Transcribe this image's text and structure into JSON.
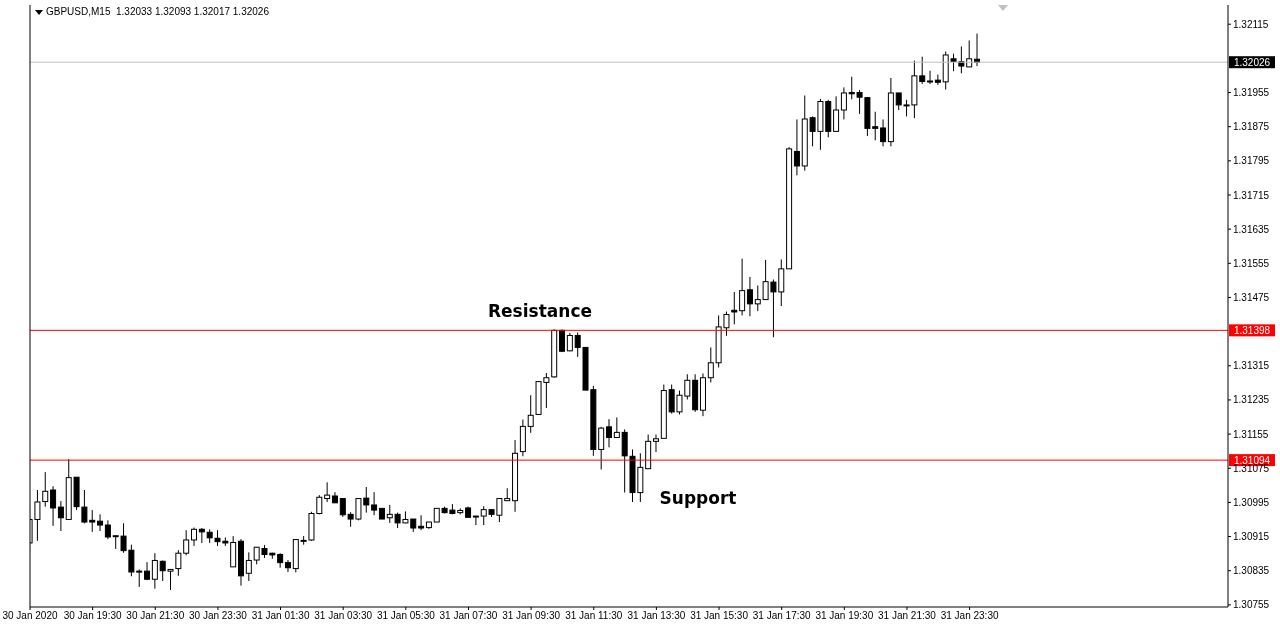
{
  "chart_data": {
    "type": "candlestick",
    "title": "GBPUSD,M15  1.32033 1.32093 1.32017 1.32026",
    "color": "#000000",
    "x": [
      "2020-01-30T17:30",
      "2020-01-30T17:45",
      "2020-01-30T18:00",
      "2020-01-30T18:15",
      "2020-01-30T18:30",
      "2020-01-30T18:45",
      "2020-01-30T19:00",
      "2020-01-30T19:15",
      "2020-01-30T19:30",
      "2020-01-30T19:45",
      "2020-01-30T20:00",
      "2020-01-30T20:15",
      "2020-01-30T20:30",
      "2020-01-30T20:45",
      "2020-01-30T21:00",
      "2020-01-30T21:15",
      "2020-01-30T21:30",
      "2020-01-30T21:45",
      "2020-01-30T22:00",
      "2020-01-30T22:15",
      "2020-01-30T22:30",
      "2020-01-30T22:45",
      "2020-01-30T23:00",
      "2020-01-30T23:15",
      "2020-01-30T23:30",
      "2020-01-30T23:45",
      "2020-01-31T00:00",
      "2020-01-31T00:15",
      "2020-01-31T00:30",
      "2020-01-31T00:45",
      "2020-01-31T01:00",
      "2020-01-31T01:15",
      "2020-01-31T01:30",
      "2020-01-31T01:45",
      "2020-01-31T02:00",
      "2020-01-31T02:15",
      "2020-01-31T02:30",
      "2020-01-31T02:45",
      "2020-01-31T03:00",
      "2020-01-31T03:15",
      "2020-01-31T03:30",
      "2020-01-31T03:45",
      "2020-01-31T04:00",
      "2020-01-31T04:15",
      "2020-01-31T04:30",
      "2020-01-31T04:45",
      "2020-01-31T05:00",
      "2020-01-31T05:15",
      "2020-01-31T05:30",
      "2020-01-31T05:45",
      "2020-01-31T06:00",
      "2020-01-31T06:15",
      "2020-01-31T06:30",
      "2020-01-31T06:45",
      "2020-01-31T07:00",
      "2020-01-31T07:15",
      "2020-01-31T07:30",
      "2020-01-31T07:45",
      "2020-01-31T08:00",
      "2020-01-31T08:15",
      "2020-01-31T08:30",
      "2020-01-31T08:45",
      "2020-01-31T09:00",
      "2020-01-31T09:15",
      "2020-01-31T09:30",
      "2020-01-31T09:45",
      "2020-01-31T10:00",
      "2020-01-31T10:15",
      "2020-01-31T10:30",
      "2020-01-31T10:45",
      "2020-01-31T11:00",
      "2020-01-31T11:15",
      "2020-01-31T11:30",
      "2020-01-31T11:45",
      "2020-01-31T12:00",
      "2020-01-31T12:15",
      "2020-01-31T12:30",
      "2020-01-31T12:45",
      "2020-01-31T13:00",
      "2020-01-31T13:15",
      "2020-01-31T13:30",
      "2020-01-31T13:45",
      "2020-01-31T14:00",
      "2020-01-31T14:15",
      "2020-01-31T14:30",
      "2020-01-31T14:45",
      "2020-01-31T15:00",
      "2020-01-31T15:15",
      "2020-01-31T15:30",
      "2020-01-31T15:45",
      "2020-01-31T16:00",
      "2020-01-31T16:15",
      "2020-01-31T16:30",
      "2020-01-31T16:45",
      "2020-01-31T17:00",
      "2020-01-31T17:15",
      "2020-01-31T17:30",
      "2020-01-31T17:45",
      "2020-01-31T18:00",
      "2020-01-31T18:15",
      "2020-01-31T18:30",
      "2020-01-31T18:45",
      "2020-01-31T19:00",
      "2020-01-31T19:15",
      "2020-01-31T19:30",
      "2020-01-31T19:45",
      "2020-01-31T20:00",
      "2020-01-31T20:15",
      "2020-01-31T20:30",
      "2020-01-31T20:45",
      "2020-01-31T21:00",
      "2020-01-31T21:15",
      "2020-01-31T21:30",
      "2020-01-31T21:45",
      "2020-01-31T22:00",
      "2020-01-31T22:15",
      "2020-01-31T22:30",
      "2020-01-31T22:45",
      "2020-01-31T23:00",
      "2020-01-31T23:15",
      "2020-01-31T23:30",
      "2020-01-31T23:45"
    ],
    "ohlc": [
      [
        1.309,
        1.30985,
        1.30877,
        1.30955
      ],
      [
        1.30955,
        1.31024,
        1.30905,
        1.30996
      ],
      [
        1.30997,
        1.31066,
        1.30985,
        1.31021
      ],
      [
        1.31024,
        1.31033,
        1.3094,
        1.30982
      ],
      [
        1.30984,
        1.30998,
        1.30928,
        1.30959
      ],
      [
        1.30955,
        1.31096,
        1.30955,
        1.31053
      ],
      [
        1.31054,
        1.31054,
        1.30977,
        1.30985
      ],
      [
        1.30984,
        1.31024,
        1.30946,
        1.30949
      ],
      [
        1.30953,
        1.30977,
        1.30926,
        1.30949
      ],
      [
        1.30951,
        1.30967,
        1.30928,
        1.30942
      ],
      [
        1.30942,
        1.30953,
        1.30909,
        1.30914
      ],
      [
        1.30917,
        1.30918,
        1.30886,
        1.30917
      ],
      [
        1.30916,
        1.30946,
        1.30877,
        1.30882
      ],
      [
        1.30883,
        1.30896,
        1.30822,
        1.30832
      ],
      [
        1.30834,
        1.30838,
        1.30797,
        1.30834
      ],
      [
        1.30834,
        1.30855,
        1.30813,
        1.30815
      ],
      [
        1.30815,
        1.30876,
        1.30793,
        1.30859
      ],
      [
        1.30857,
        1.30859,
        1.30811,
        1.30835
      ],
      [
        1.30834,
        1.30838,
        1.3079,
        1.30838
      ],
      [
        1.3084,
        1.30883,
        1.30823,
        1.30876
      ],
      [
        1.30876,
        1.3093,
        1.30871,
        1.30907
      ],
      [
        1.30907,
        1.30936,
        1.30893,
        1.30932
      ],
      [
        1.30932,
        1.30935,
        1.309,
        1.30926
      ],
      [
        1.30925,
        1.30932,
        1.309,
        1.30912
      ],
      [
        1.30911,
        1.3093,
        1.30893,
        1.30903
      ],
      [
        1.30904,
        1.30913,
        1.30893,
        1.309
      ],
      [
        1.30844,
        1.30916,
        1.30844,
        1.30901
      ],
      [
        1.30904,
        1.30909,
        1.308,
        1.30823
      ],
      [
        1.30829,
        1.30878,
        1.30811,
        1.30859
      ],
      [
        1.3086,
        1.3089,
        1.3085,
        1.3089
      ],
      [
        1.30887,
        1.30895,
        1.30865,
        1.30873
      ],
      [
        1.30876,
        1.30877,
        1.30863,
        1.30872
      ],
      [
        1.30873,
        1.30876,
        1.30842,
        1.30854
      ],
      [
        1.30854,
        1.3086,
        1.30832,
        1.30842
      ],
      [
        1.3084,
        1.30908,
        1.30831,
        1.30908
      ],
      [
        1.30906,
        1.30916,
        1.30896,
        1.30906
      ],
      [
        1.30907,
        1.30973,
        1.30905,
        1.30969
      ],
      [
        1.30969,
        1.31012,
        1.30967,
        1.31007
      ],
      [
        1.31004,
        1.31042,
        1.30996,
        1.31012
      ],
      [
        1.3101,
        1.31019,
        1.30994,
        1.30994
      ],
      [
        1.31004,
        1.31004,
        1.30961,
        1.30966
      ],
      [
        1.30967,
        1.30972,
        1.30938,
        1.30956
      ],
      [
        1.30956,
        1.31004,
        1.30953,
        1.31004
      ],
      [
        1.31005,
        1.31031,
        1.30971,
        1.30989
      ],
      [
        1.30989,
        1.31019,
        1.30965,
        1.30977
      ],
      [
        1.30981,
        1.30981,
        1.30956,
        1.30956
      ],
      [
        1.30959,
        1.30989,
        1.30947,
        1.30967
      ],
      [
        1.30967,
        1.30971,
        1.30935,
        1.30947
      ],
      [
        1.30947,
        1.30974,
        1.30946,
        1.30955
      ],
      [
        1.30956,
        1.30956,
        1.30926,
        1.30935
      ],
      [
        1.30939,
        1.30965,
        1.3093,
        1.30935
      ],
      [
        1.30936,
        1.30949,
        1.30933,
        1.30949
      ],
      [
        1.30949,
        1.30981,
        1.30949,
        1.30981
      ],
      [
        1.30981,
        1.30985,
        1.30969,
        1.30971
      ],
      [
        1.30977,
        1.30991,
        1.30967,
        1.30969
      ],
      [
        1.30971,
        1.30981,
        1.30967,
        1.30976
      ],
      [
        1.30982,
        1.30985,
        1.3096,
        1.3096
      ],
      [
        1.30963,
        1.30963,
        1.30942,
        1.30963
      ],
      [
        1.30963,
        1.30986,
        1.30942,
        1.30978
      ],
      [
        1.30978,
        1.30978,
        1.30961,
        1.30967
      ],
      [
        1.30965,
        1.31004,
        1.30949,
        1.31004
      ],
      [
        1.30999,
        1.31028,
        1.30999,
        1.31004
      ],
      [
        1.30999,
        1.31141,
        1.30973,
        1.3111
      ],
      [
        1.31114,
        1.31189,
        1.31103,
        1.31173
      ],
      [
        1.31173,
        1.31246,
        1.31158,
        1.31199
      ],
      [
        1.31201,
        1.31278,
        1.31201,
        1.31278
      ],
      [
        1.31276,
        1.31298,
        1.31216,
        1.31287
      ],
      [
        1.31289,
        1.314,
        1.31287,
        1.31398
      ],
      [
        1.31398,
        1.314,
        1.31347,
        1.31349
      ],
      [
        1.3135,
        1.31392,
        1.31349,
        1.31386
      ],
      [
        1.31386,
        1.31393,
        1.31336,
        1.31358
      ],
      [
        1.31358,
        1.31359,
        1.31258,
        1.31258
      ],
      [
        1.31259,
        1.31268,
        1.31104,
        1.31119
      ],
      [
        1.31119,
        1.31172,
        1.31072,
        1.31169
      ],
      [
        1.31172,
        1.3119,
        1.31124,
        1.31147
      ],
      [
        1.31147,
        1.31194,
        1.31147,
        1.31159
      ],
      [
        1.31159,
        1.31166,
        1.31018,
        1.31104
      ],
      [
        1.31103,
        1.31119,
        1.30996,
        1.31018
      ],
      [
        1.31018,
        1.3111,
        1.30996,
        1.31077
      ],
      [
        1.31074,
        1.31154,
        1.31074,
        1.31138
      ],
      [
        1.31138,
        1.31154,
        1.31113,
        1.31144
      ],
      [
        1.31145,
        1.31271,
        1.31145,
        1.31257
      ],
      [
        1.31259,
        1.31271,
        1.31203,
        1.31207
      ],
      [
        1.31207,
        1.31257,
        1.31201,
        1.31246
      ],
      [
        1.31244,
        1.31295,
        1.31236,
        1.31281
      ],
      [
        1.31281,
        1.31295,
        1.31207,
        1.31212
      ],
      [
        1.31211,
        1.31297,
        1.31197,
        1.31287
      ],
      [
        1.31287,
        1.31358,
        1.31276,
        1.31322
      ],
      [
        1.31322,
        1.31433,
        1.31311,
        1.31406
      ],
      [
        1.31404,
        1.31442,
        1.31385,
        1.31435
      ],
      [
        1.31445,
        1.31488,
        1.31412,
        1.31441
      ],
      [
        1.31444,
        1.31566,
        1.31433,
        1.31491
      ],
      [
        1.31493,
        1.31523,
        1.31431,
        1.3146
      ],
      [
        1.3146,
        1.31503,
        1.31443,
        1.3147
      ],
      [
        1.3147,
        1.31563,
        1.3147,
        1.31512
      ],
      [
        1.31511,
        1.31517,
        1.31382,
        1.31488
      ],
      [
        1.31488,
        1.31564,
        1.31455,
        1.31542
      ],
      [
        1.31542,
        1.31827,
        1.31542,
        1.31823
      ],
      [
        1.31817,
        1.31892,
        1.31761,
        1.31783
      ],
      [
        1.31783,
        1.31948,
        1.31772,
        1.31893
      ],
      [
        1.31896,
        1.31899,
        1.31829,
        1.31864
      ],
      [
        1.31864,
        1.3194,
        1.31821,
        1.31934
      ],
      [
        1.31934,
        1.31938,
        1.3185,
        1.31864
      ],
      [
        1.31864,
        1.31946,
        1.31864,
        1.31914
      ],
      [
        1.31914,
        1.31967,
        1.31892,
        1.31954
      ],
      [
        1.31955,
        1.31992,
        1.31939,
        1.31952
      ],
      [
        1.31955,
        1.31961,
        1.31905,
        1.31944
      ],
      [
        1.31943,
        1.31943,
        1.31853,
        1.31871
      ],
      [
        1.31875,
        1.3191,
        1.31843,
        1.31871
      ],
      [
        1.31872,
        1.31892,
        1.31829,
        1.3184
      ],
      [
        1.3184,
        1.31989,
        1.31829,
        1.31954
      ],
      [
        1.31954,
        1.31954,
        1.31914,
        1.31926
      ],
      [
        1.31926,
        1.31938,
        1.31899,
        1.31926
      ],
      [
        1.31926,
        1.3203,
        1.31895,
        1.31994
      ],
      [
        1.31994,
        1.32039,
        1.31975,
        1.31981
      ],
      [
        1.31982,
        1.32006,
        1.31975,
        1.31982
      ],
      [
        1.31984,
        1.31997,
        1.31973,
        1.31979
      ],
      [
        1.3198,
        1.32051,
        1.31962,
        1.32043
      ],
      [
        1.32034,
        1.32046,
        1.32005,
        1.32028
      ],
      [
        1.32027,
        1.32063,
        1.32,
        1.32017
      ],
      [
        1.32015,
        1.32077,
        1.32015,
        1.32034
      ],
      [
        1.32033,
        1.32093,
        1.32017,
        1.32026
      ]
    ],
    "xlim": [
      "2020-01-30T17:30",
      "2020-02-01T07:45"
    ],
    "xticks": [
      {
        "value": "2020-01-30T17:30",
        "label": "30 Jan 2020"
      },
      {
        "value": "2020-01-30T19:30",
        "label": "30 Jan 19:30"
      },
      {
        "value": "2020-01-30T21:30",
        "label": "30 Jan 21:30"
      },
      {
        "value": "2020-01-30T23:30",
        "label": "30 Jan 23:30"
      },
      {
        "value": "2020-01-31T01:30",
        "label": "31 Jan 01:30"
      },
      {
        "value": "2020-01-31T03:30",
        "label": "31 Jan 03:30"
      },
      {
        "value": "2020-01-31T05:30",
        "label": "31 Jan 05:30"
      },
      {
        "value": "2020-01-31T07:30",
        "label": "31 Jan 07:30"
      },
      {
        "value": "2020-01-31T09:30",
        "label": "31 Jan 09:30"
      },
      {
        "value": "2020-01-31T11:30",
        "label": "31 Jan 11:30"
      },
      {
        "value": "2020-01-31T13:30",
        "label": "31 Jan 13:30"
      },
      {
        "value": "2020-01-31T15:30",
        "label": "31 Jan 15:30"
      },
      {
        "value": "2020-01-31T17:30",
        "label": "31 Jan 17:30"
      },
      {
        "value": "2020-01-31T19:30",
        "label": "31 Jan 19:30"
      },
      {
        "value": "2020-01-31T21:30",
        "label": "31 Jan 21:30"
      },
      {
        "value": "2020-01-31T23:30",
        "label": "31 Jan 23:30"
      }
    ],
    "ylim": [
      1.3075,
      1.3216
    ],
    "yticks": [
      1.30755,
      1.30835,
      1.30915,
      1.30995,
      1.31075,
      1.31155,
      1.31235,
      1.31315,
      1.31475,
      1.31555,
      1.31635,
      1.31715,
      1.31795,
      1.31875,
      1.31955,
      1.32115
    ],
    "ref_lines": [
      {
        "axis": "y",
        "value": 1.31398,
        "label": "1.31398",
        "color": "#ff0000"
      },
      {
        "axis": "y",
        "value": 1.31094,
        "label": "1.31094",
        "color": "#ff0000"
      },
      {
        "axis": "y",
        "value": 1.32026,
        "label": "1.32026",
        "color": "#c0c0c0"
      }
    ],
    "annotations": [
      "Resistance",
      "Support"
    ]
  }
}
